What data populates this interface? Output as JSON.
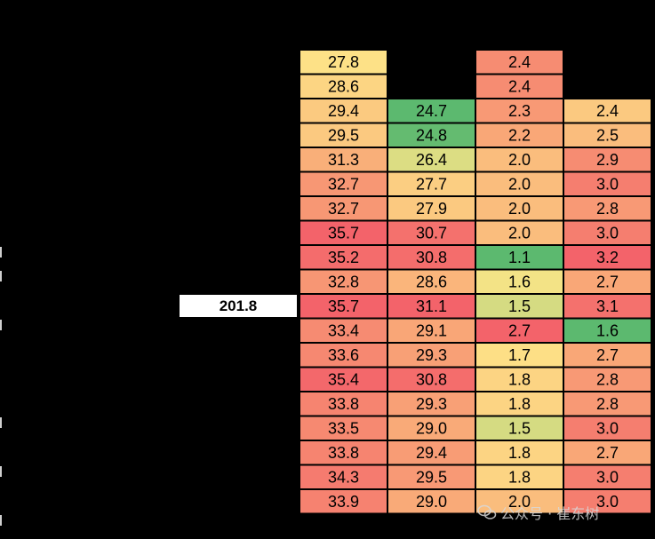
{
  "side_label": "201.8",
  "watermark": "公众号 · 崔东树",
  "chart_data": {
    "type": "heatmap",
    "title": "",
    "columns": 4,
    "rows": [
      [
        27.8,
        null,
        2.4,
        null
      ],
      [
        28.6,
        null,
        2.4,
        null
      ],
      [
        29.4,
        24.7,
        2.3,
        2.4
      ],
      [
        29.5,
        24.8,
        2.2,
        2.5
      ],
      [
        31.3,
        26.4,
        2.0,
        2.9
      ],
      [
        32.7,
        27.7,
        2.0,
        3.0
      ],
      [
        32.7,
        27.9,
        2.0,
        2.8
      ],
      [
        35.7,
        30.7,
        2.0,
        3.0
      ],
      [
        35.2,
        30.8,
        1.1,
        3.2
      ],
      [
        32.8,
        28.6,
        1.6,
        2.7
      ],
      [
        35.7,
        31.1,
        1.5,
        3.1
      ],
      [
        33.4,
        29.1,
        2.7,
        1.6
      ],
      [
        33.6,
        29.3,
        1.7,
        2.7
      ],
      [
        35.4,
        30.8,
        1.8,
        2.8
      ],
      [
        33.8,
        29.3,
        1.8,
        2.8
      ],
      [
        33.5,
        29.0,
        1.5,
        3.0
      ],
      [
        33.8,
        29.4,
        1.8,
        2.7
      ],
      [
        34.3,
        29.5,
        1.8,
        3.0
      ],
      [
        33.9,
        29.0,
        2.0,
        3.0
      ]
    ],
    "colors": {
      "green": "#5cb96f",
      "yellow": "#fde688",
      "orange": "#f9ab78",
      "red": "#f3636a"
    }
  }
}
